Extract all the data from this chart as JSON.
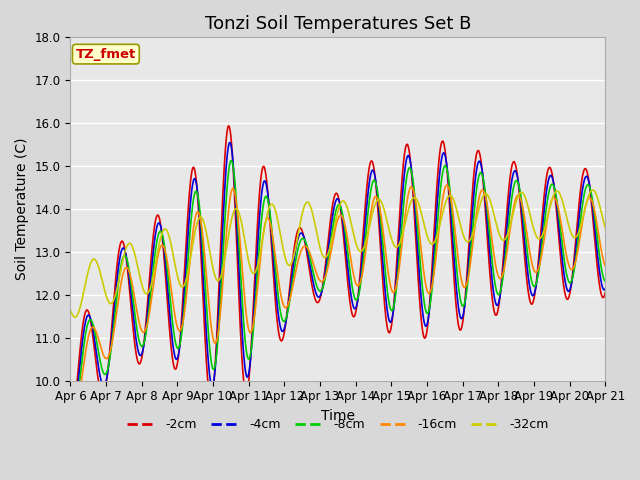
{
  "title": "Tonzi Soil Temperatures Set B",
  "xlabel": "Time",
  "ylabel": "Soil Temperature (C)",
  "ylim": [
    10.0,
    18.0
  ],
  "yticks": [
    10.0,
    11.0,
    12.0,
    13.0,
    14.0,
    15.0,
    16.0,
    17.0,
    18.0
  ],
  "xtick_labels": [
    "Apr 6",
    "Apr 7",
    "Apr 8",
    "Apr 9",
    "Apr 10",
    "Apr 11",
    "Apr 12",
    "Apr 13",
    "Apr 14",
    "Apr 15",
    "Apr 16",
    "Apr 17",
    "Apr 18",
    "Apr 19",
    "Apr 20",
    "Apr 21"
  ],
  "series_colors": [
    "#dd0000",
    "#0000dd",
    "#00cc00",
    "#ff8800",
    "#cccc00"
  ],
  "series_labels": [
    "-2cm",
    "-4cm",
    "-8cm",
    "-16cm",
    "-32cm"
  ],
  "legend_label": "TZ_fmet",
  "legend_box_color": "#ffffcc",
  "legend_box_edge": "#999900",
  "legend_text_color": "#cc0000",
  "fig_bg_color": "#d8d8d8",
  "plot_bg_color": "#e8e8e8",
  "grid_color": "#ffffff",
  "title_fontsize": 13,
  "axis_label_fontsize": 10,
  "tick_fontsize": 8.5
}
